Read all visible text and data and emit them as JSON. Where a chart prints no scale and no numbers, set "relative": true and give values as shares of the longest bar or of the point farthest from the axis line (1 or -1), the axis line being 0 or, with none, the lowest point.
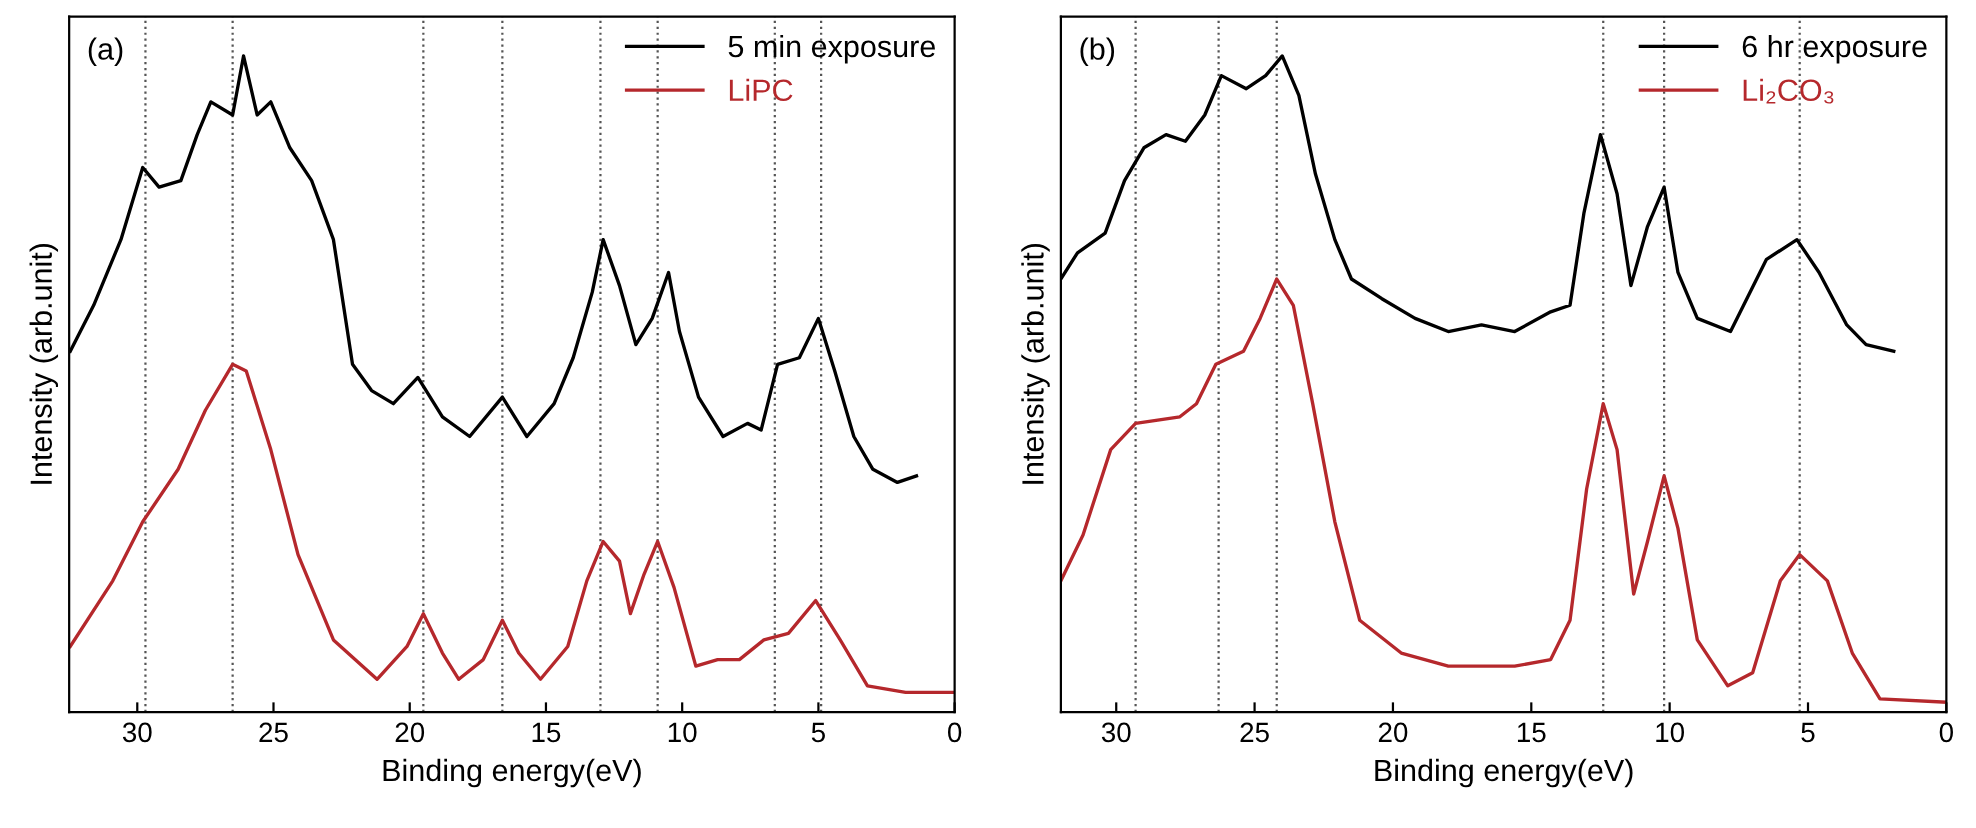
{
  "chart_data": [
    {
      "type": "line",
      "relative": true,
      "xlabel": "Binding energy(eV)",
      "ylabel": "Intensity (arb.unit)",
      "annotations": [
        "(a)"
      ],
      "xlim": [
        32.5,
        0
      ],
      "xticks": [
        30,
        25,
        20,
        15,
        10,
        5,
        0
      ],
      "legend": "top right",
      "grid": false,
      "line_style": "solid",
      "marker": "none",
      "series": [
        {
          "name": "5 min exposure",
          "color": "#000000",
          "x": [
            32.46,
            31.6,
            30.6,
            29.8,
            29.2,
            28.4,
            27.8,
            27.3,
            26.5,
            26.1,
            25.6,
            25.1,
            24.4,
            23.6,
            22.8,
            22.1,
            21.4,
            20.6,
            19.7,
            18.8,
            17.8,
            16.6,
            15.7,
            14.7,
            14.0,
            13.3,
            12.9,
            12.3,
            11.7,
            11.1,
            10.5,
            10.1,
            9.4,
            8.5,
            7.6,
            7.1,
            6.5,
            5.7,
            5.0,
            4.4,
            3.7,
            3.0,
            2.1,
            1.4
          ],
          "values": [
            0.55,
            0.62,
            0.72,
            0.83,
            0.8,
            0.81,
            0.88,
            0.93,
            0.91,
            1.0,
            0.91,
            0.93,
            0.86,
            0.81,
            0.72,
            0.53,
            0.49,
            0.47,
            0.51,
            0.45,
            0.42,
            0.48,
            0.42,
            0.47,
            0.54,
            0.64,
            0.72,
            0.65,
            0.56,
            0.6,
            0.67,
            0.58,
            0.48,
            0.42,
            0.44,
            0.43,
            0.53,
            0.54,
            0.6,
            0.52,
            0.42,
            0.37,
            0.35,
            0.36
          ]
        },
        {
          "name": "LiPC",
          "color": "#b5282c",
          "x": [
            32.46,
            30.9,
            29.8,
            28.5,
            27.5,
            26.5,
            26.0,
            25.1,
            24.1,
            22.8,
            21.2,
            20.1,
            19.5,
            18.8,
            18.2,
            17.3,
            16.6,
            16.0,
            15.2,
            14.2,
            13.5,
            12.9,
            12.3,
            11.9,
            11.4,
            10.9,
            10.3,
            9.5,
            8.7,
            7.9,
            7.0,
            6.1,
            5.1,
            4.2,
            3.2,
            1.8,
            0
          ],
          "values": [
            0.1,
            0.2,
            0.29,
            0.37,
            0.46,
            0.53,
            0.52,
            0.4,
            0.24,
            0.11,
            0.05,
            0.1,
            0.15,
            0.09,
            0.05,
            0.08,
            0.14,
            0.09,
            0.05,
            0.1,
            0.2,
            0.26,
            0.23,
            0.15,
            0.21,
            0.26,
            0.19,
            0.07,
            0.08,
            0.08,
            0.11,
            0.12,
            0.17,
            0.11,
            0.04,
            0.03,
            0.03
          ]
        }
      ],
      "ref_lines": [
        {
          "axis": "x",
          "value": 29.7,
          "color": "#555555",
          "line_style": "dotted"
        },
        {
          "axis": "x",
          "value": 26.5,
          "color": "#555555",
          "line_style": "dotted"
        },
        {
          "axis": "x",
          "value": 19.5,
          "color": "#555555",
          "line_style": "dotted"
        },
        {
          "axis": "x",
          "value": 16.6,
          "color": "#555555",
          "line_style": "dotted"
        },
        {
          "axis": "x",
          "value": 13.0,
          "color": "#555555",
          "line_style": "dotted"
        },
        {
          "axis": "x",
          "value": 10.9,
          "color": "#555555",
          "line_style": "dotted"
        },
        {
          "axis": "x",
          "value": 6.6,
          "color": "#555555",
          "line_style": "dotted"
        },
        {
          "axis": "x",
          "value": 4.9,
          "color": "#555555",
          "line_style": "dotted"
        }
      ]
    },
    {
      "type": "line",
      "relative": true,
      "xlabel": "Binding energy(eV)",
      "ylabel": "Intensity (arb.unit)",
      "annotations": [
        "(b)"
      ],
      "xlim": [
        32,
        0
      ],
      "xticks": [
        30,
        25,
        20,
        15,
        10,
        5,
        0
      ],
      "legend": "top right",
      "grid": false,
      "line_style": "solid",
      "marker": "none",
      "series": [
        {
          "name": "6 hr exposure",
          "color": "#000000",
          "x": [
            32.0,
            31.4,
            30.4,
            29.7,
            29.0,
            28.2,
            27.5,
            26.8,
            26.2,
            25.3,
            24.6,
            24.0,
            23.4,
            22.8,
            22.1,
            21.5,
            20.4,
            19.2,
            18.0,
            16.8,
            15.6,
            14.3,
            13.6,
            13.1,
            12.5,
            11.9,
            11.4,
            10.8,
            10.2,
            9.7,
            9.0,
            7.8,
            6.5,
            5.4,
            4.6,
            3.6,
            2.9,
            1.9
          ],
          "values": [
            0.66,
            0.7,
            0.73,
            0.81,
            0.86,
            0.88,
            0.87,
            0.91,
            0.97,
            0.95,
            0.97,
            1.0,
            0.94,
            0.82,
            0.72,
            0.66,
            0.63,
            0.6,
            0.58,
            0.59,
            0.58,
            0.61,
            0.62,
            0.76,
            0.88,
            0.79,
            0.65,
            0.74,
            0.8,
            0.67,
            0.6,
            0.58,
            0.69,
            0.72,
            0.67,
            0.59,
            0.56,
            0.55
          ]
        },
        {
          "name": "Li₂CO₃",
          "color": "#b5282c",
          "x": [
            32.0,
            31.2,
            30.2,
            29.3,
            27.7,
            27.1,
            26.4,
            25.4,
            24.8,
            24.2,
            23.6,
            22.9,
            22.1,
            21.2,
            19.7,
            18.0,
            15.6,
            14.3,
            13.6,
            13.0,
            12.4,
            11.9,
            11.3,
            10.8,
            10.2,
            9.7,
            9.0,
            7.9,
            7.0,
            6.0,
            5.3,
            4.3,
            3.4,
            2.4,
            0
          ],
          "values": [
            0.2,
            0.27,
            0.4,
            0.44,
            0.45,
            0.47,
            0.53,
            0.55,
            0.6,
            0.66,
            0.62,
            0.47,
            0.29,
            0.14,
            0.09,
            0.07,
            0.07,
            0.08,
            0.14,
            0.34,
            0.47,
            0.4,
            0.18,
            0.26,
            0.36,
            0.28,
            0.11,
            0.04,
            0.06,
            0.2,
            0.24,
            0.2,
            0.09,
            0.02,
            0.015
          ]
        }
      ],
      "ref_lines": [
        {
          "axis": "x",
          "value": 29.3,
          "color": "#555555",
          "line_style": "dotted"
        },
        {
          "axis": "x",
          "value": 26.3,
          "color": "#555555",
          "line_style": "dotted"
        },
        {
          "axis": "x",
          "value": 24.2,
          "color": "#555555",
          "line_style": "dotted"
        },
        {
          "axis": "x",
          "value": 12.4,
          "color": "#555555",
          "line_style": "dotted"
        },
        {
          "axis": "x",
          "value": 10.2,
          "color": "#555555",
          "line_style": "dotted"
        },
        {
          "axis": "x",
          "value": 5.3,
          "color": "#555555",
          "line_style": "dotted"
        }
      ]
    }
  ]
}
